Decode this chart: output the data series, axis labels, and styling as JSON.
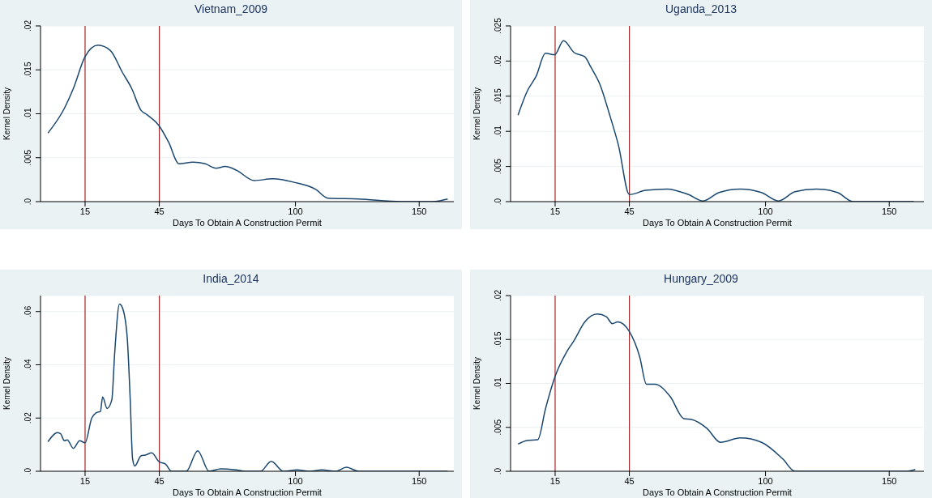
{
  "chart_data": [
    {
      "type": "line",
      "title": "Vietnam_2009",
      "xlabel": "Days To Obtain A Construction Permit",
      "ylabel": "Kernel Density",
      "xlim": [
        -3,
        164
      ],
      "xticks": [
        15,
        45,
        100,
        150
      ],
      "ylim": [
        0,
        0.02
      ],
      "yticks": [
        {
          "value": 0,
          "label": ".0"
        },
        {
          "value": 0.005,
          "label": ".005"
        },
        {
          "value": 0.01,
          "label": ".01"
        },
        {
          "value": 0.015,
          "label": ".015"
        },
        {
          "value": 0.02,
          "label": ".02"
        }
      ],
      "grid": "y",
      "legend": false,
      "marker": "none",
      "line_style": "solid",
      "ref_lines": [
        {
          "axis": "x",
          "value": 15,
          "color": "#a3262a"
        },
        {
          "axis": "x",
          "value": 45,
          "color": "#a3262a"
        }
      ],
      "series": [
        {
          "color": "#1a476f",
          "x": [
            0,
            6.6,
            10.3,
            15,
            20.2,
            25.2,
            30.1,
            33.8,
            37.6,
            40,
            45,
            48.7,
            53,
            58.6,
            63.6,
            67.9,
            71.6,
            76,
            83.4,
            90.8,
            99.5,
            108.2,
            113.1,
            125.5,
            142.9,
            155.3,
            158.4,
            161.5
          ],
          "values": [
            0.0078,
            0.0106,
            0.0129,
            0.0165,
            0.0178,
            0.0172,
            0.0147,
            0.0129,
            0.0104,
            0.0099,
            0.0086,
            0.0068,
            0.0043,
            0.0045,
            0.0043,
            0.0038,
            0.004,
            0.0036,
            0.0024,
            0.0026,
            0.0022,
            0.0014,
            0.0004,
            0.0003,
            0,
            0,
            0.0001,
            0.0003
          ]
        }
      ]
    },
    {
      "type": "line",
      "title": "Uganda_2013",
      "xlabel": "Days To Obtain A Construction Permit",
      "ylabel": "Kernel Density",
      "xlim": [
        -3,
        164
      ],
      "xticks": [
        15,
        45,
        100,
        150
      ],
      "ylim": [
        0,
        0.025
      ],
      "yticks": [
        {
          "value": 0,
          "label": ".0"
        },
        {
          "value": 0.005,
          "label": ".005"
        },
        {
          "value": 0.01,
          "label": ".01"
        },
        {
          "value": 0.015,
          "label": ".015"
        },
        {
          "value": 0.02,
          "label": ".02"
        },
        {
          "value": 0.025,
          "label": ".025"
        }
      ],
      "grid": "y",
      "legend": false,
      "marker": "none",
      "line_style": "solid",
      "ref_lines": [
        {
          "axis": "x",
          "value": 15,
          "color": "#a3262a"
        },
        {
          "axis": "x",
          "value": 45,
          "color": "#a3262a"
        }
      ],
      "series": [
        {
          "color": "#1a476f",
          "x": [
            0,
            3.7,
            7.4,
            11.1,
            14.8,
            18.4,
            22.7,
            27,
            29.5,
            33.2,
            36.9,
            40.6,
            45,
            51.6,
            60.3,
            68.9,
            74.8,
            81.2,
            89.8,
            98.4,
            105.2,
            111.9,
            120.5,
            129.1,
            135.3,
            159.9
          ],
          "values": [
            0.0123,
            0.0157,
            0.0179,
            0.0211,
            0.0209,
            0.0229,
            0.0212,
            0.0206,
            0.0191,
            0.0166,
            0.0125,
            0.008,
            0.001,
            0.0016,
            0.0018,
            0.001,
            0.0001,
            0.0013,
            0.0018,
            0.0013,
            0.0001,
            0.0014,
            0.0018,
            0.0013,
            0,
            0
          ]
        }
      ]
    },
    {
      "type": "line",
      "title": "India_2014",
      "xlabel": "Days To Obtain A Construction Permit",
      "ylabel": "Kernel Density",
      "xlim": [
        -3,
        164
      ],
      "xticks": [
        15,
        45,
        100,
        150
      ],
      "ylim": [
        0,
        0.066
      ],
      "yticks": [
        {
          "value": 0,
          "label": ".0"
        },
        {
          "value": 0.02,
          "label": ".02"
        },
        {
          "value": 0.04,
          "label": ".04"
        },
        {
          "value": 0.06,
          "label": ".06"
        }
      ],
      "grid": "y",
      "legend": false,
      "marker": "none",
      "line_style": "solid",
      "ref_lines": [
        {
          "axis": "x",
          "value": 15,
          "color": "#a3262a"
        },
        {
          "axis": "x",
          "value": 45,
          "color": "#a3262a"
        }
      ],
      "series": [
        {
          "color": "#1a476f",
          "x": [
            0,
            3.1,
            3.6,
            5.1,
            6.6,
            7.8,
            10.3,
            12.8,
            15,
            17.7,
            19.6,
            21.2,
            22.1,
            23.9,
            25.8,
            27,
            28.9,
            30.1,
            32,
            33.2,
            34.2,
            35.1,
            37.6,
            39.4,
            41.9,
            45,
            47.5,
            49.9,
            55.9,
            60.5,
            65.1,
            69.8,
            76,
            79.7,
            85.9,
            90.2,
            95.2,
            100.7,
            105.7,
            110.7,
            116.2,
            120.6,
            125.5,
            161.5
          ],
          "values": [
            0.0111,
            0.0143,
            0.0145,
            0.0141,
            0.0115,
            0.0118,
            0.0086,
            0.0115,
            0.0107,
            0.02,
            0.022,
            0.0225,
            0.0279,
            0.0236,
            0.0268,
            0.0449,
            0.0628,
            0.0614,
            0.0506,
            0.0279,
            0.0047,
            0.002,
            0.0058,
            0.0061,
            0.0069,
            0.0035,
            0.0027,
            0,
            0,
            0.0077,
            0,
            0.0009,
            0.0005,
            0,
            0,
            0.0037,
            0,
            0.0005,
            0,
            0.0005,
            0,
            0.0015,
            0,
            0
          ]
        }
      ]
    },
    {
      "type": "line",
      "title": "Hungary_2009",
      "xlabel": "Days To Obtain A Construction Permit",
      "ylabel": "Kernel Density",
      "xlim": [
        -3,
        164
      ],
      "xticks": [
        15,
        45,
        100,
        150
      ],
      "ylim": [
        0,
        0.02
      ],
      "yticks": [
        {
          "value": 0,
          "label": ".0"
        },
        {
          "value": 0.005,
          "label": ".005"
        },
        {
          "value": 0.01,
          "label": ".01"
        },
        {
          "value": 0.015,
          "label": ".015"
        },
        {
          "value": 0.02,
          "label": ".02"
        }
      ],
      "grid": "y",
      "legend": false,
      "marker": "none",
      "line_style": "solid",
      "ref_lines": [
        {
          "axis": "x",
          "value": 15,
          "color": "#a3262a"
        },
        {
          "axis": "x",
          "value": 45,
          "color": "#a3262a"
        }
      ],
      "series": [
        {
          "color": "#1a476f",
          "x": [
            0,
            3.7,
            8,
            11.1,
            15,
            19.7,
            22.7,
            27,
            32,
            35.7,
            38.1,
            40.3,
            45,
            49.2,
            51.9,
            55.3,
            61.5,
            67,
            70.1,
            76.3,
            81.8,
            89.8,
            98.4,
            107,
            111.9,
            157.4,
            160.5
          ],
          "values": [
            0.0031,
            0.0035,
            0.0036,
            0.0071,
            0.0108,
            0.0136,
            0.0149,
            0.017,
            0.0179,
            0.0176,
            0.0168,
            0.017,
            0.0159,
            0.013,
            0.0099,
            0.0099,
            0.0085,
            0.006,
            0.0059,
            0.0049,
            0.0033,
            0.0038,
            0.0033,
            0.0014,
            0,
            0,
            0.0002
          ]
        }
      ]
    }
  ]
}
